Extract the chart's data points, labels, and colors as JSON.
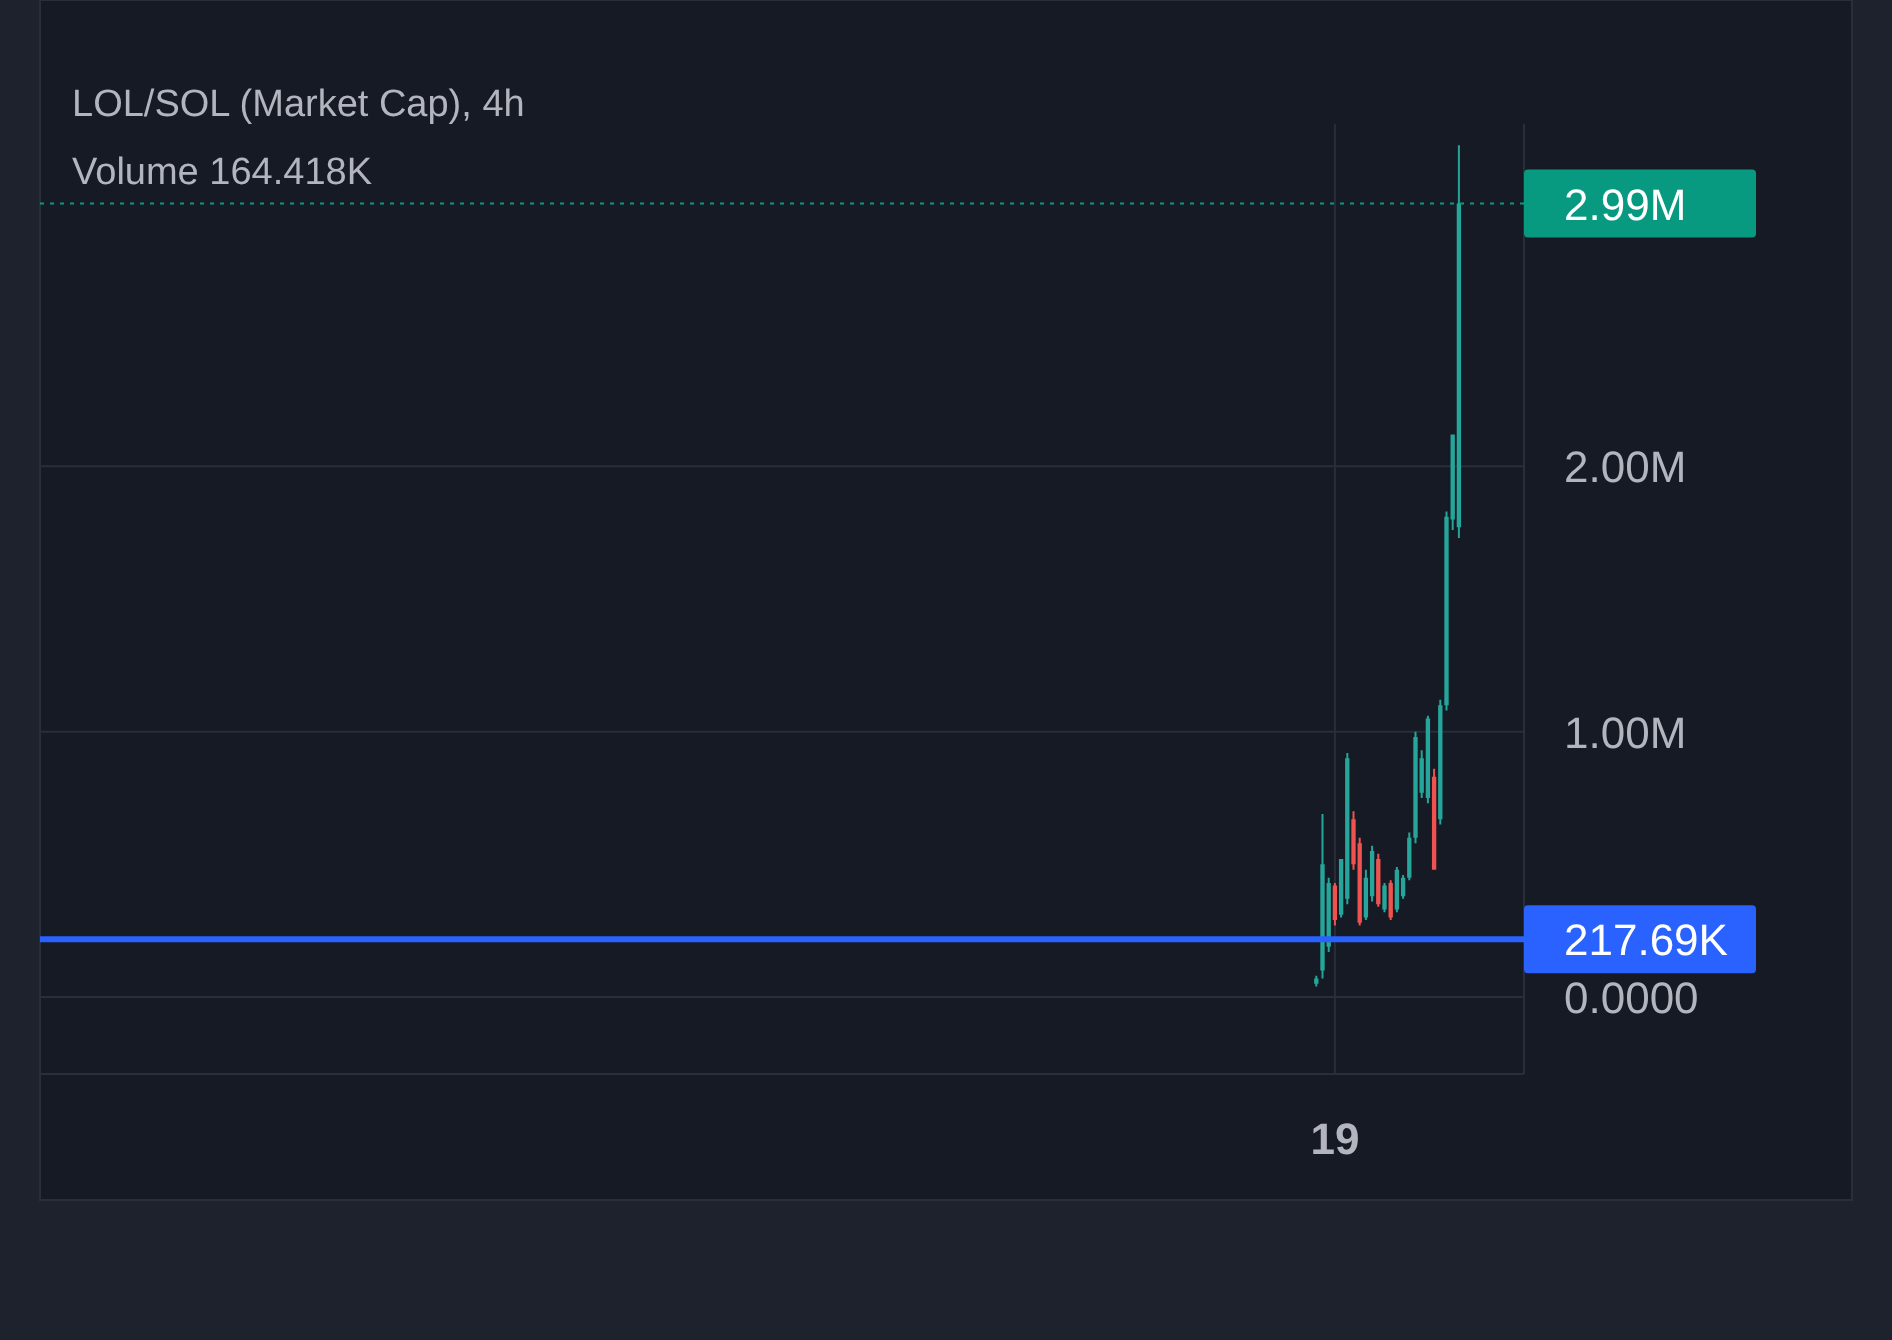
{
  "chart_data": {
    "type": "candlestick",
    "title": "LOL/SOL (Market Cap), 4h",
    "annotations": [
      "Volume 164.418K"
    ],
    "categories": [
      null,
      null,
      null,
      "19",
      null,
      null,
      null,
      null,
      null,
      null,
      null,
      null,
      null,
      null,
      null,
      null,
      null,
      null,
      null,
      null,
      null,
      null,
      null,
      null
    ],
    "ohlc": [
      [
        0.05,
        0.08,
        0.04,
        0.07
      ],
      [
        0.1,
        0.69,
        0.07,
        0.5
      ],
      [
        0.19,
        0.45,
        0.17,
        0.43
      ],
      [
        0.42,
        0.43,
        0.27,
        0.29
      ],
      [
        0.31,
        0.52,
        0.3,
        0.52
      ],
      [
        0.37,
        0.92,
        0.35,
        0.9
      ],
      [
        0.67,
        0.7,
        0.48,
        0.5
      ],
      [
        0.58,
        0.6,
        0.27,
        0.28
      ],
      [
        0.3,
        0.48,
        0.29,
        0.45
      ],
      [
        0.38,
        0.57,
        0.36,
        0.55
      ],
      [
        0.52,
        0.54,
        0.34,
        0.35
      ],
      [
        0.33,
        0.43,
        0.32,
        0.42
      ],
      [
        0.43,
        0.44,
        0.29,
        0.3
      ],
      [
        0.33,
        0.49,
        0.32,
        0.48
      ],
      [
        0.38,
        0.46,
        0.37,
        0.45
      ],
      [
        0.45,
        0.62,
        0.44,
        0.6
      ],
      [
        0.6,
        1.0,
        0.58,
        0.98
      ],
      [
        0.77,
        0.93,
        0.75,
        0.9
      ],
      [
        0.75,
        1.06,
        0.73,
        1.05
      ],
      [
        0.83,
        0.86,
        0.48,
        0.48
      ],
      [
        0.67,
        1.12,
        0.65,
        1.1
      ],
      [
        1.1,
        1.83,
        1.08,
        1.81
      ],
      [
        1.8,
        2.12,
        1.76,
        2.12
      ],
      [
        1.77,
        3.21,
        1.73,
        2.99
      ]
    ],
    "colors": [
      "#26a69a",
      "#26a69a",
      "#26a69a",
      "#ef5350",
      "#26a69a",
      "#26a69a",
      "#ef5350",
      "#ef5350",
      "#26a69a",
      "#26a69a",
      "#ef5350",
      "#26a69a",
      "#ef5350",
      "#26a69a",
      "#26a69a",
      "#26a69a",
      "#26a69a",
      "#26a69a",
      "#26a69a",
      "#ef5350",
      "#26a69a",
      "#26a69a",
      "#26a69a",
      "#26a69a"
    ],
    "ylim": [
      -0.29,
      3.29
    ],
    "yticks": [
      {
        "value": 0,
        "label": "0.0000"
      },
      {
        "value": 1,
        "label": "1.00M"
      },
      {
        "value": 2,
        "label": "2.00M"
      }
    ],
    "grid": true,
    "ref_lines": [
      {
        "axis": "y",
        "value": 0.21769,
        "label": "217.69K",
        "color": "#2962ff",
        "line_style": "solid"
      },
      {
        "axis": "y",
        "value": 2.99,
        "label": "2.99M",
        "color": "#089981",
        "line_style": "dotted"
      }
    ]
  }
}
